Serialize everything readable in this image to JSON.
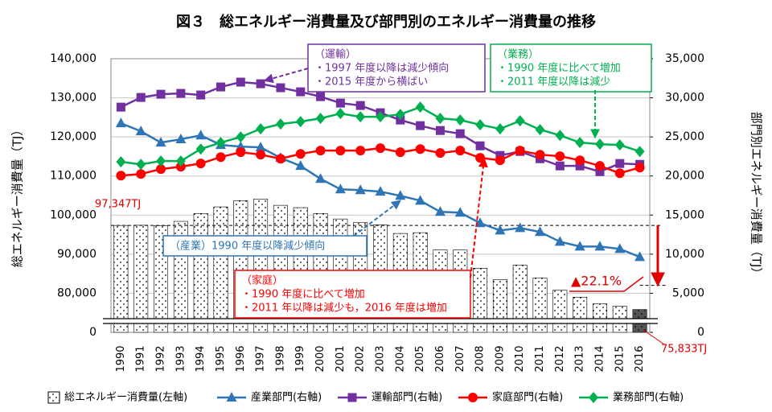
{
  "chart_data": {
    "type": "bar-line",
    "title": "図３　総エネルギー消費量及び部門別のエネルギー消費量の推移",
    "y_label": "総エネルギー消費量（TJ）",
    "y2_label": "部門別エネルギー消費量（TJ）",
    "categories": [
      "1990",
      "1991",
      "1992",
      "1993",
      "1994",
      "1995",
      "1996",
      "1997",
      "1998",
      "1999",
      "2000",
      "2001",
      "2002",
      "2003",
      "2004",
      "2005",
      "2006",
      "2007",
      "2008",
      "2009",
      "2010",
      "2011",
      "2012",
      "2013",
      "2014",
      "2015",
      "2016"
    ],
    "ylim": [
      70000,
      140000
    ],
    "axis_break": true,
    "yticks": [
      0,
      {
        "value": 80000,
        "label": "80,000"
      },
      {
        "value": 90000,
        "label": "90,000"
      },
      {
        "value": 100000,
        "label": "100,000"
      },
      {
        "value": 110000,
        "label": "110,000"
      },
      {
        "value": 120000,
        "label": "120,000"
      },
      {
        "value": 130000,
        "label": "130,000"
      },
      {
        "value": 140000,
        "label": "140,000"
      }
    ],
    "y2lim": [
      0,
      35000
    ],
    "y2ticks": [
      0,
      {
        "value": 5000,
        "label": "5,000"
      },
      {
        "value": 10000,
        "label": "10,000"
      },
      {
        "value": 15000,
        "label": "15,000"
      },
      {
        "value": 20000,
        "label": "20,000"
      },
      {
        "value": 25000,
        "label": "25,000"
      },
      {
        "value": 30000,
        "label": "30,000"
      },
      {
        "value": 35000,
        "label": "35,000"
      }
    ],
    "grid": true,
    "series": [
      {
        "name": "総エネルギー消費量(左軸)",
        "type": "bar",
        "color": "#000000",
        "colors": [
          "#ffffff",
          "#ffffff",
          "#ffffff",
          "#ffffff",
          "#ffffff",
          "#ffffff",
          "#ffffff",
          "#ffffff",
          "#ffffff",
          "#ffffff",
          "#ffffff",
          "#ffffff",
          "#ffffff",
          "#ffffff",
          "#ffffff",
          "#ffffff",
          "#ffffff",
          "#ffffff",
          "#ffffff",
          "#ffffff",
          "#ffffff",
          "#ffffff",
          "#ffffff",
          "#ffffff",
          "#ffffff",
          "#ffffff",
          "#555555"
        ],
        "values": [
          97347,
          97400,
          97300,
          98400,
          100400,
          102100,
          103700,
          104100,
          102500,
          101900,
          100400,
          99000,
          98100,
          97500,
          95300,
          95500,
          91100,
          91100,
          86400,
          83500,
          87200,
          83900,
          80800,
          79000,
          77300,
          76700,
          75833
        ],
        "value_labels": [
          "97,347TJ",
          null,
          null,
          null,
          null,
          null,
          null,
          null,
          null,
          null,
          null,
          null,
          null,
          null,
          null,
          null,
          null,
          null,
          null,
          null,
          null,
          null,
          null,
          null,
          null,
          null,
          "75,833TJ"
        ]
      },
      {
        "name": "産業部門(右軸)",
        "type": "line",
        "axis": "y2",
        "marker": "triangle",
        "color": "#2e75b6",
        "values": [
          26750,
          25720,
          24280,
          24700,
          25200,
          23970,
          23760,
          23660,
          22320,
          21290,
          19640,
          18300,
          18200,
          18000,
          17470,
          16850,
          15410,
          15310,
          13970,
          13040,
          13350,
          12840,
          11600,
          10980,
          10980,
          10670,
          9640
        ]
      },
      {
        "name": "運輸部門(右軸)",
        "type": "line",
        "axis": "y2",
        "marker": "square",
        "color": "#7030a0",
        "values": [
          28810,
          30050,
          30460,
          30570,
          30360,
          31390,
          32010,
          31800,
          31290,
          30770,
          30150,
          29330,
          29020,
          28090,
          27160,
          26440,
          25820,
          25410,
          23860,
          22630,
          23140,
          22210,
          21290,
          21290,
          20560,
          21600,
          21490
        ]
      },
      {
        "name": "家庭部門(右軸)",
        "type": "line",
        "axis": "y2",
        "marker": "circle",
        "color": "#ff0000",
        "values": [
          20050,
          20260,
          20880,
          21190,
          21600,
          22420,
          23040,
          22730,
          22210,
          22830,
          23250,
          23250,
          23250,
          23560,
          23040,
          23450,
          22940,
          23250,
          22320,
          22010,
          23250,
          22730,
          22530,
          22010,
          21290,
          20360,
          21080
        ]
      },
      {
        "name": "業務部門(右軸)",
        "type": "line",
        "axis": "y2",
        "marker": "diamond",
        "color": "#00b050",
        "values": [
          21810,
          21490,
          21910,
          21910,
          23450,
          24280,
          25000,
          26030,
          26650,
          26960,
          27370,
          27990,
          27580,
          27580,
          27890,
          28810,
          27370,
          27160,
          26550,
          26030,
          27060,
          25930,
          25200,
          24280,
          24070,
          23970,
          23140
        ]
      }
    ],
    "change_label": "▲22.1%",
    "annotations": [
      {
        "color": "#7030a0",
        "lines": [
          "（運輸）",
          "・1997 年度以降は減少傾向",
          "・2015 年度から横ばい"
        ]
      },
      {
        "color": "#00b050",
        "lines": [
          "（業務）",
          "・1990 年度に比べて増加",
          "・2011 年度以降は減少"
        ]
      },
      {
        "color": "#2e75b6",
        "lines": [
          "（産業）1990 年度以降減少傾向"
        ]
      },
      {
        "color": "#ff0000",
        "lines": [
          "（家庭）",
          "・1990 年度に比べて増加",
          "・2011 年以降は減少も，2016 年度は増加"
        ]
      }
    ]
  }
}
